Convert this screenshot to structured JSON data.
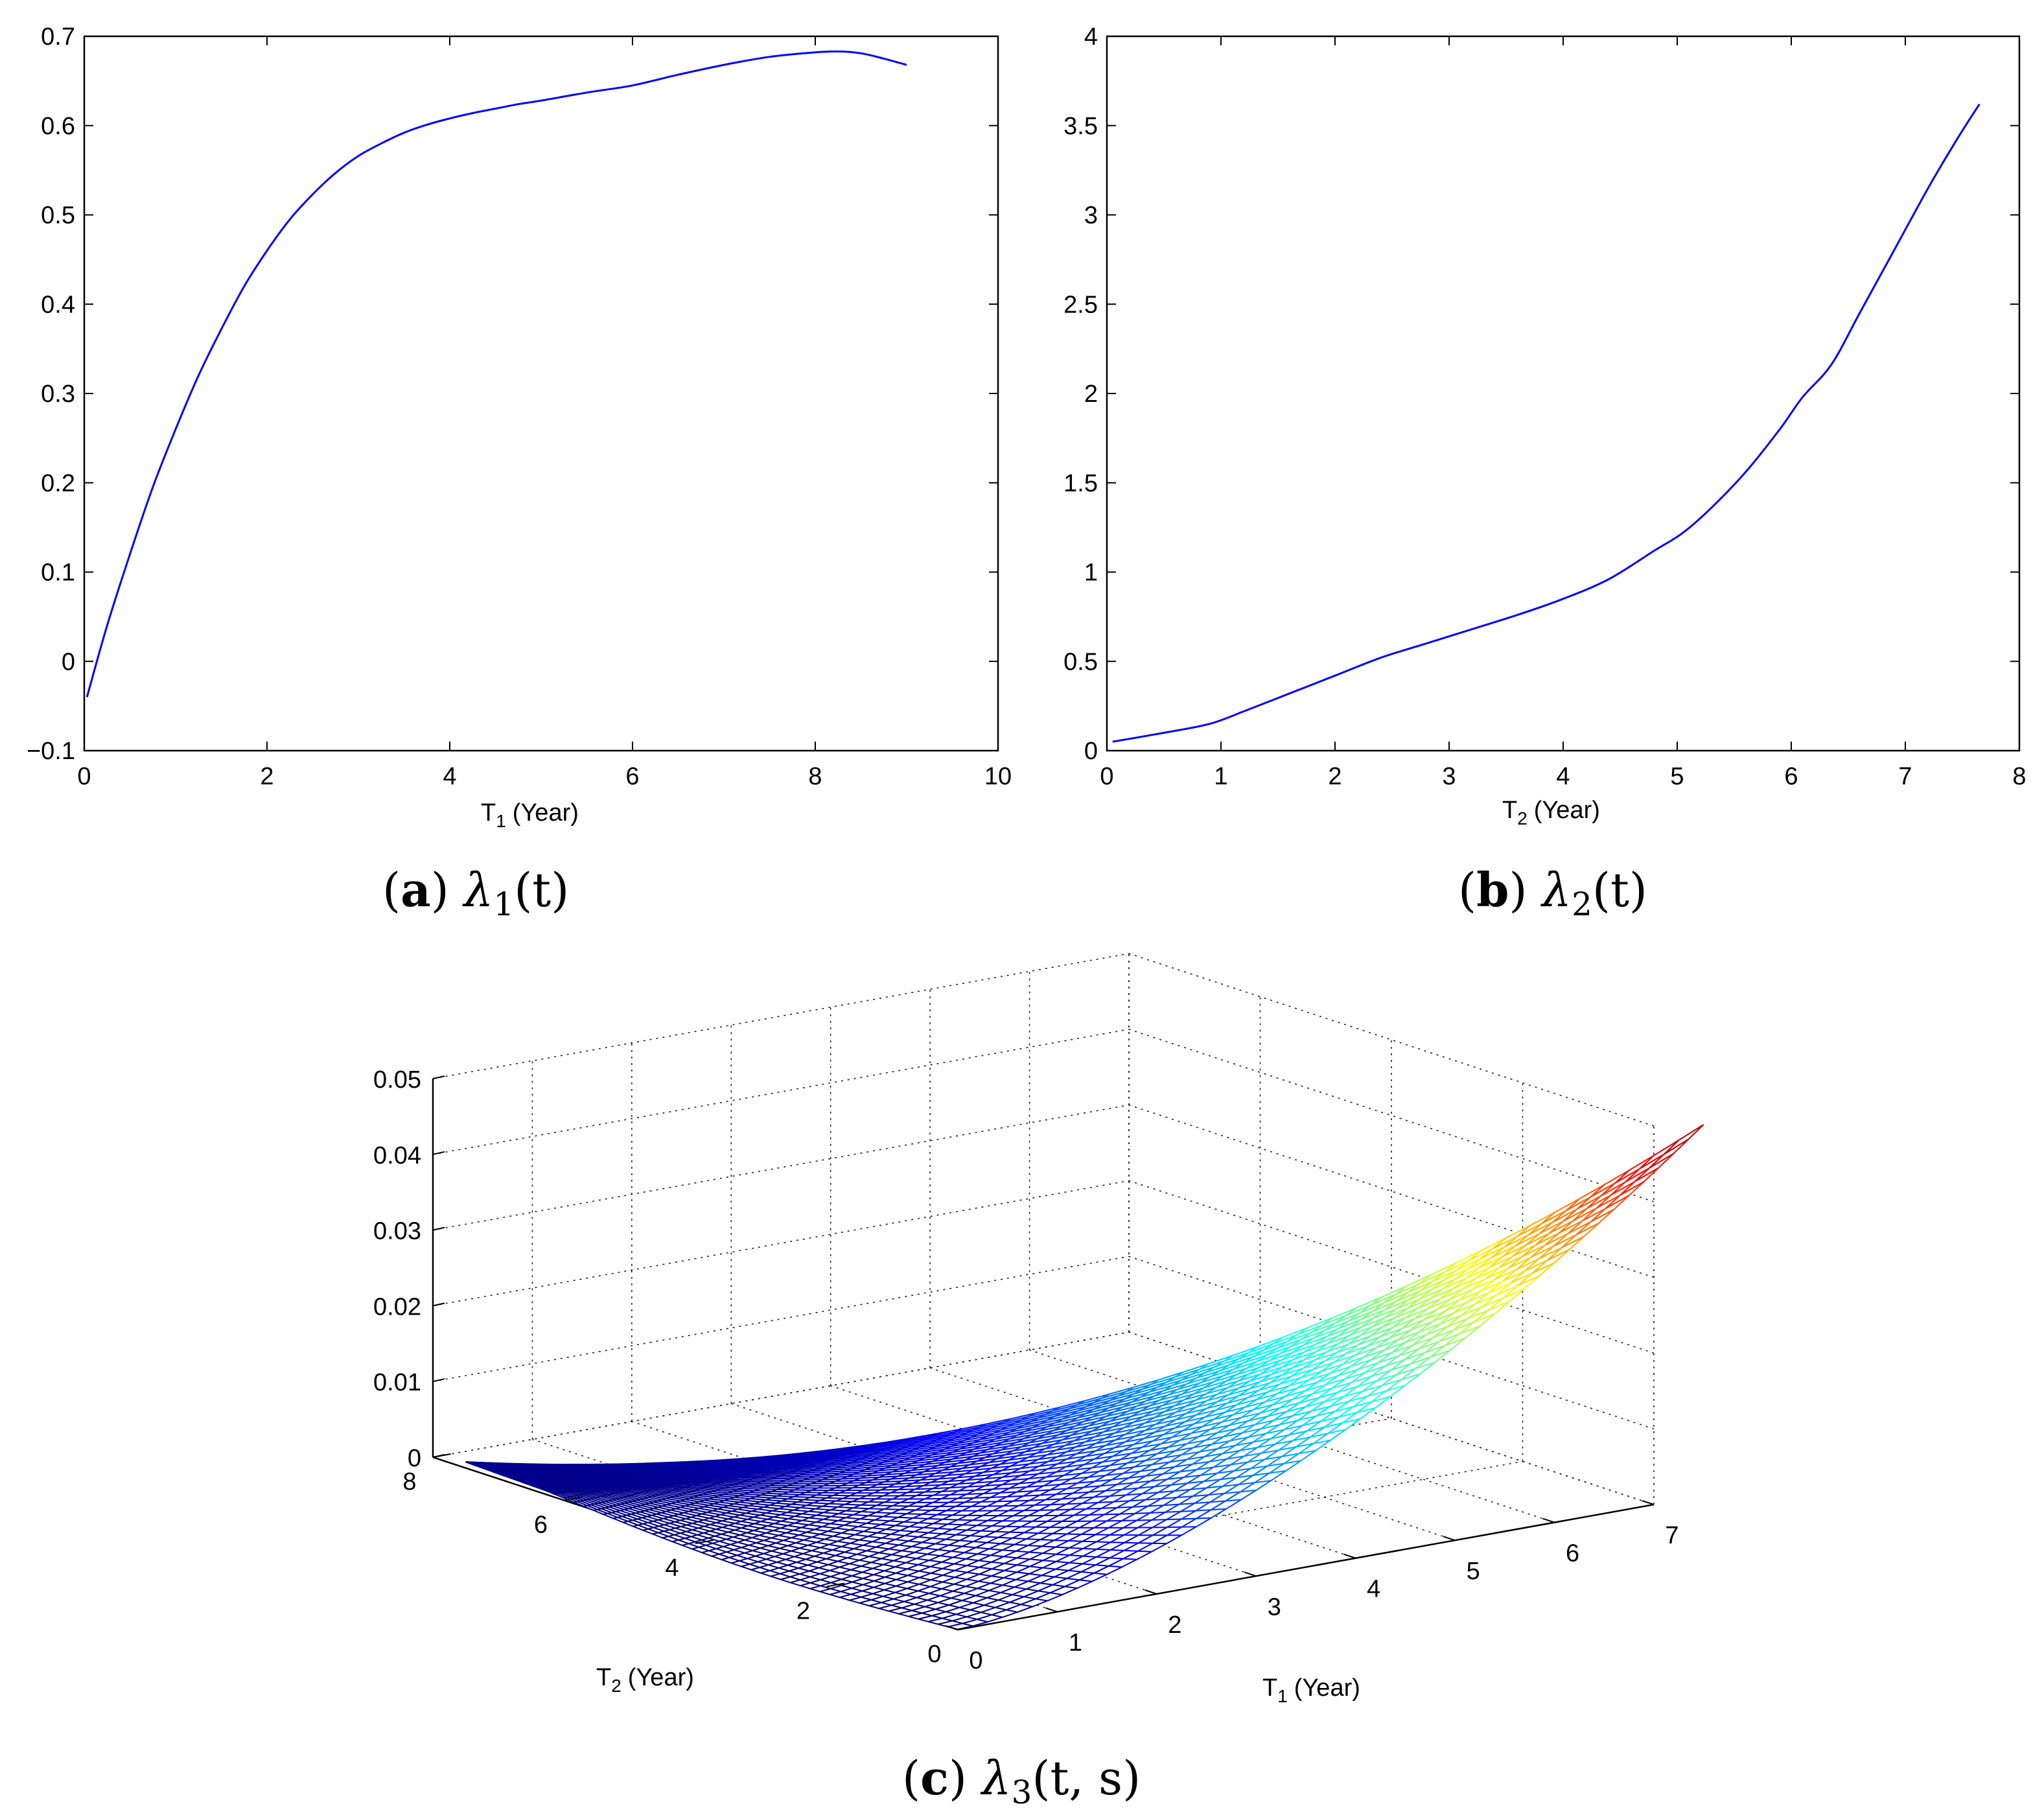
{
  "chart_data": [
    {
      "type": "line",
      "panel": "a",
      "caption_letter": "a",
      "caption_symbol": "λ",
      "caption_sub": "1",
      "caption_args": "(t)",
      "xlabel_main": "T",
      "xlabel_sub": "1",
      "xlabel_unit": "(Year)",
      "ylabel": "",
      "xlim": [
        0,
        10
      ],
      "ylim": [
        -0.1,
        0.7
      ],
      "xticks": [
        0,
        2,
        4,
        6,
        8,
        10
      ],
      "yticks": [
        -0.1,
        0,
        0.1,
        0.2,
        0.3,
        0.4,
        0.5,
        0.6,
        0.7
      ],
      "ytick_labels": [
        "−0.1",
        "0",
        "0.1",
        "0.2",
        "0.3",
        "0.4",
        "0.5",
        "0.6",
        "0.7"
      ],
      "grid": false,
      "line_color": "#0000ff",
      "series": [
        {
          "x": [
            0.03,
            0.25,
            0.5,
            0.75,
            1.0,
            1.25,
            1.5,
            1.75,
            2.0,
            2.25,
            2.5,
            2.75,
            3.0,
            3.25,
            3.5,
            3.75,
            4.0,
            4.25,
            4.5,
            4.75,
            5.0,
            5.5,
            6.0,
            6.5,
            7.0,
            7.5,
            8.0,
            8.25,
            8.5,
            8.75,
            9.0
          ],
          "y": [
            -0.04,
            0.04,
            0.12,
            0.195,
            0.26,
            0.32,
            0.372,
            0.42,
            0.46,
            0.495,
            0.523,
            0.547,
            0.566,
            0.58,
            0.592,
            0.601,
            0.608,
            0.614,
            0.619,
            0.624,
            0.628,
            0.637,
            0.645,
            0.657,
            0.668,
            0.677,
            0.682,
            0.683,
            0.681,
            0.675,
            0.668
          ]
        }
      ]
    },
    {
      "type": "line",
      "panel": "b",
      "caption_letter": "b",
      "caption_symbol": "λ",
      "caption_sub": "2",
      "caption_args": "(t)",
      "xlabel_main": "T",
      "xlabel_sub": "2",
      "xlabel_unit": "(Year)",
      "ylabel": "",
      "xlim": [
        0,
        8
      ],
      "ylim": [
        0,
        4
      ],
      "xticks": [
        0,
        1,
        2,
        3,
        4,
        5,
        6,
        7,
        8
      ],
      "yticks": [
        0,
        0.5,
        1,
        1.5,
        2,
        2.5,
        3,
        3.5,
        4
      ],
      "ytick_labels": [
        "0",
        "0.5",
        "1",
        "1.5",
        "2",
        "2.5",
        "3",
        "3.5",
        "4"
      ],
      "grid": false,
      "line_color": "#0000ff",
      "series": [
        {
          "x": [
            0.05,
            0.5,
            0.9,
            1.2,
            1.6,
            2.0,
            2.4,
            2.8,
            3.2,
            3.6,
            4.0,
            4.4,
            4.8,
            5.05,
            5.3,
            5.6,
            5.9,
            6.1,
            6.35,
            6.6,
            6.9,
            7.2,
            7.45,
            7.65
          ],
          "y": [
            0.05,
            0.1,
            0.15,
            0.22,
            0.32,
            0.42,
            0.52,
            0.6,
            0.68,
            0.76,
            0.85,
            0.96,
            1.12,
            1.22,
            1.36,
            1.56,
            1.8,
            1.98,
            2.16,
            2.45,
            2.8,
            3.15,
            3.42,
            3.62
          ]
        }
      ]
    },
    {
      "type": "surface",
      "panel": "c",
      "caption_letter": "c",
      "caption_symbol": "λ",
      "caption_sub": "3",
      "caption_args": "(t, s)",
      "xlabel_main": "T",
      "xlabel_sub": "1",
      "xlabel_unit": "(Year)",
      "ylabel_main": "T",
      "ylabel_sub": "2",
      "ylabel_unit": "(Year)",
      "zlabel": "",
      "xlim": [
        0,
        7
      ],
      "ylim": [
        0,
        8
      ],
      "zlim": [
        0,
        0.05
      ],
      "xticks": [
        0,
        1,
        2,
        3,
        4,
        5,
        6,
        7
      ],
      "yticks": [
        0,
        2,
        4,
        6,
        8
      ],
      "zticks": [
        0,
        0.01,
        0.02,
        0.03,
        0.04,
        0.05
      ],
      "grid": true,
      "colormap": "jet",
      "surface_domain": "0 <= T1 <= 7.5 - T2, 0 <= T2 <= 7.5",
      "z_max": 0.049,
      "z_at_origin": 0.0,
      "z_at_T2_max": 0.0008
    }
  ]
}
